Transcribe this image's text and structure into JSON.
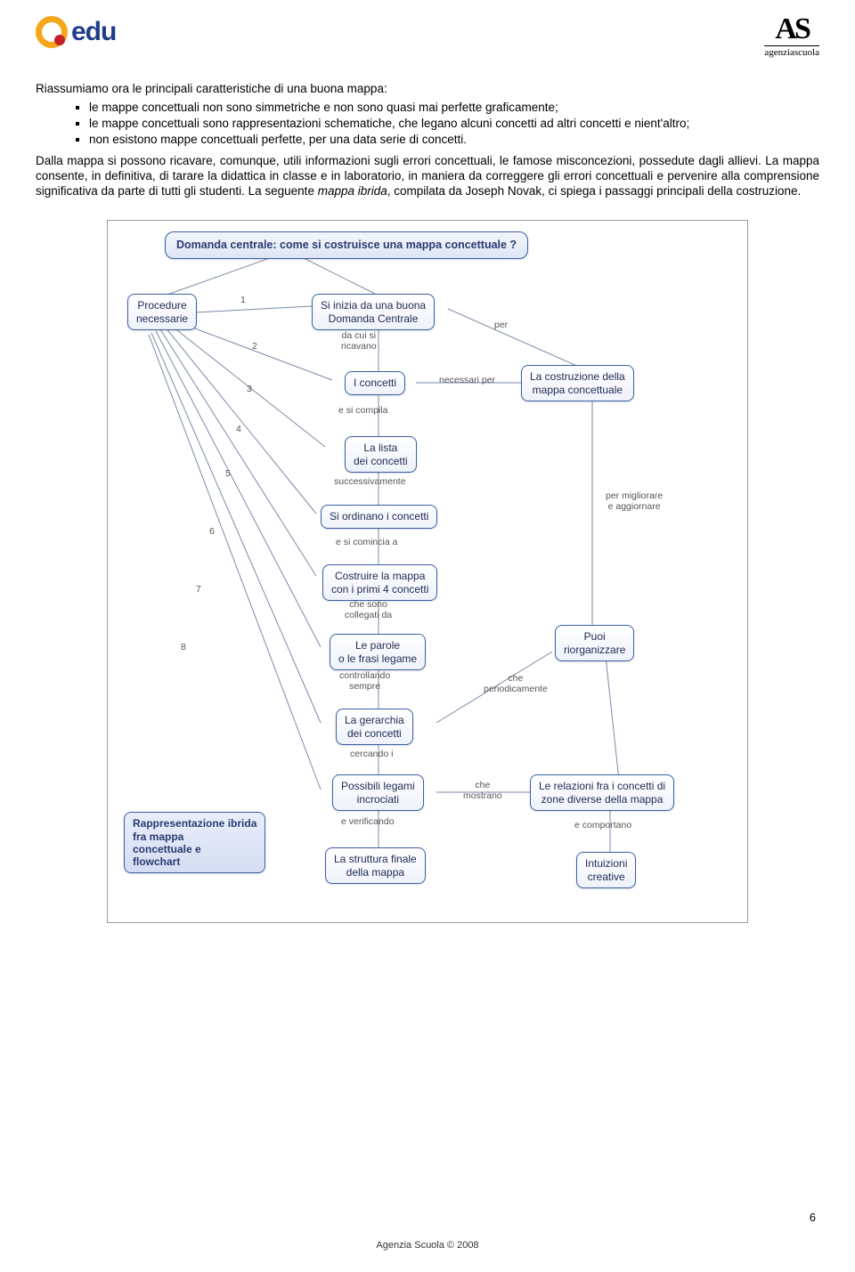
{
  "header": {
    "logo_left_text": "edu",
    "logo_right_top": "AS",
    "logo_right_sub": "agenziascuola"
  },
  "text": {
    "intro": "Riassumiamo ora le principali caratteristiche di una buona mappa:",
    "bullets": [
      "le mappe concettuali non sono simmetriche e non sono quasi mai perfette graficamente;",
      "le mappe concettuali sono rappresentazioni schematiche, che legano alcuni concetti ad altri concetti e nient'altro;",
      "non esistono mappe concettuali perfette, per una data serie di concetti."
    ],
    "para2_a": "Dalla mappa si possono ricavare, comunque, utili informazioni sugli errori concettuali, le famose misconcezioni, possedute dagli allievi. La mappa consente, in definitiva, di tarare la didattica in classe e in laboratorio, in maniera da correggere gli errori concettuali e pervenire alla comprensione significativa da parte di tutti gli studenti. La seguente ",
    "para2_italic": "mappa ibrida",
    "para2_b": ", compilata da Joseph Novak, ci spiega i passaggi principali della costruzione."
  },
  "diagram": {
    "title": "Domanda centrale: come si costruisce una mappa concettuale ?",
    "nodes": {
      "procedure": "Procedure\nnecessarie",
      "start": "Si inizia da una buona\nDomanda Centrale",
      "costruzione": "La costruzione della\nmappa concettuale",
      "concetti": "I concetti",
      "lista": "La lista\ndei concetti",
      "ordina": "Si ordinano i concetti",
      "costruire": "Costruire la mappa\ncon i primi 4 concetti",
      "parole": "Le parole\no le frasi legame",
      "gerarchia": "La gerarchia\ndei concetti",
      "legami": "Possibili legami\nincrociati",
      "struttura": "La struttura finale\ndella mappa",
      "riorg": "Puoi\nriorganizzare",
      "relazioni": "Le relazioni fra i concetti di\nzone diverse della mappa",
      "intuizioni": "Intuizioni\ncreative",
      "hybrid": "Rappresentazione ibrida\nfra mappa\nconcettuale e\nflowchart"
    },
    "edge_labels": {
      "l1": "1",
      "l2": "2",
      "l3": "3",
      "l4": "4",
      "l5": "5",
      "l6": "6",
      "l7": "7",
      "l8": "8",
      "per": "per",
      "dacui": "da cui si\nricavano",
      "necessari": "necessari per",
      "ecompila": "e si compila",
      "success": "successivamente",
      "comincia": "e si comincia a",
      "collegati": "che sono\ncollegati da",
      "controllando": "controllando\nsempre",
      "cercando": "cercando i",
      "verificando": "e verificando",
      "mostrano": "che\nmostrano",
      "periodic": "che\nperiodicamente",
      "migliorare": "per migliorare\ne aggiornare",
      "comportano": "e comportano"
    }
  },
  "footer": {
    "text": "Agenzia Scuola © 2008",
    "page": "6"
  },
  "colors": {
    "node_border": "#3a5fa8",
    "edge": "#7a8aa8",
    "title_bg": "#dde5f4",
    "label_text": "#555555"
  }
}
